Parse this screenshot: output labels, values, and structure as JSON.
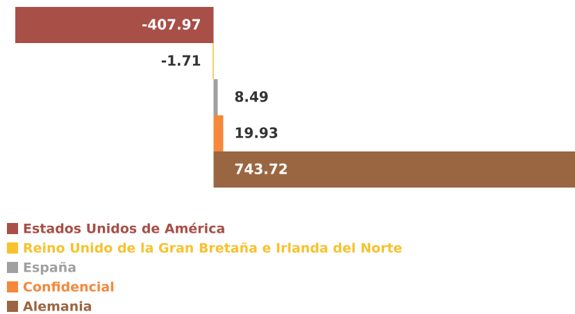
{
  "chart_data": {
    "type": "bar",
    "series": [
      {
        "name": "Estados Unidos de América",
        "color": "#a84f47",
        "values": [
          -407.97
        ]
      },
      {
        "name": "Reino Unido de la Gran Bretaña e Irlanda del Norte",
        "color": "#f7c22e",
        "values": [
          -1.71
        ]
      },
      {
        "name": "España",
        "color": "#a0a0a0",
        "values": [
          8.49
        ]
      },
      {
        "name": "Confidencial",
        "color": "#f5883b",
        "values": [
          19.93
        ]
      },
      {
        "name": "Alemania",
        "color": "#9a6641",
        "values": [
          743.72
        ]
      }
    ]
  }
}
